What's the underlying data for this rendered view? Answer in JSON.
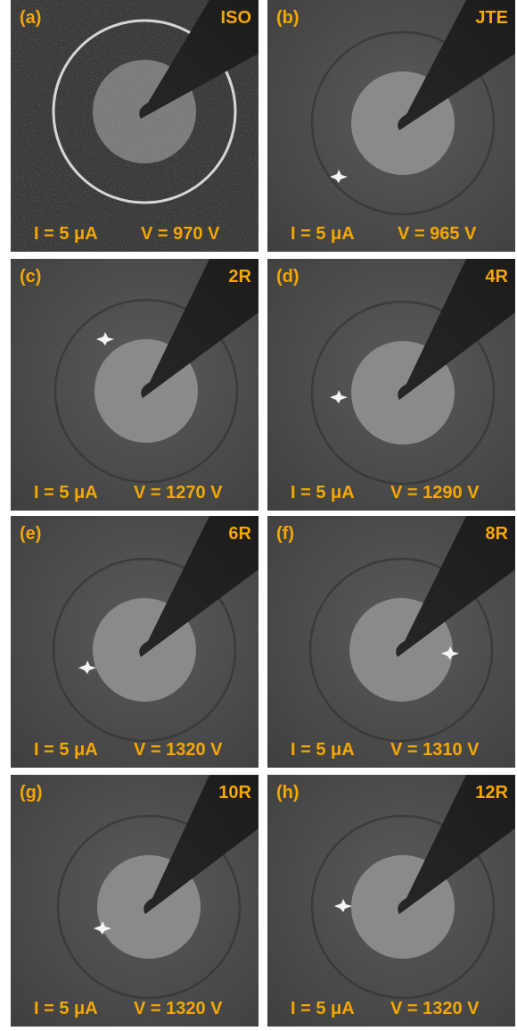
{
  "panels": [
    {
      "label": "(a)",
      "structure": "ISO",
      "current": "I = 5 μA",
      "voltage": "V = 970 V"
    },
    {
      "label": "(b)",
      "structure": "JTE",
      "current": "I = 5 μA",
      "voltage": "V = 965 V"
    },
    {
      "label": "(c)",
      "structure": "2R",
      "current": "I = 5 μA",
      "voltage": "V = 1270 V"
    },
    {
      "label": "(d)",
      "structure": "4R",
      "current": "I = 5 μA",
      "voltage": "V = 1290 V"
    },
    {
      "label": "(e)",
      "structure": "6R",
      "current": "I = 5 μA",
      "voltage": "V = 1320 V"
    },
    {
      "label": "(f)",
      "structure": "8R",
      "current": "I = 5 μA",
      "voltage": "V = 1310 V"
    },
    {
      "label": "(g)",
      "structure": "10R",
      "current": "I = 5 μA",
      "voltage": "V = 1320 V"
    },
    {
      "label": "(h)",
      "structure": "12R",
      "current": "I = 5 μA",
      "voltage": "V = 1320 V"
    }
  ]
}
